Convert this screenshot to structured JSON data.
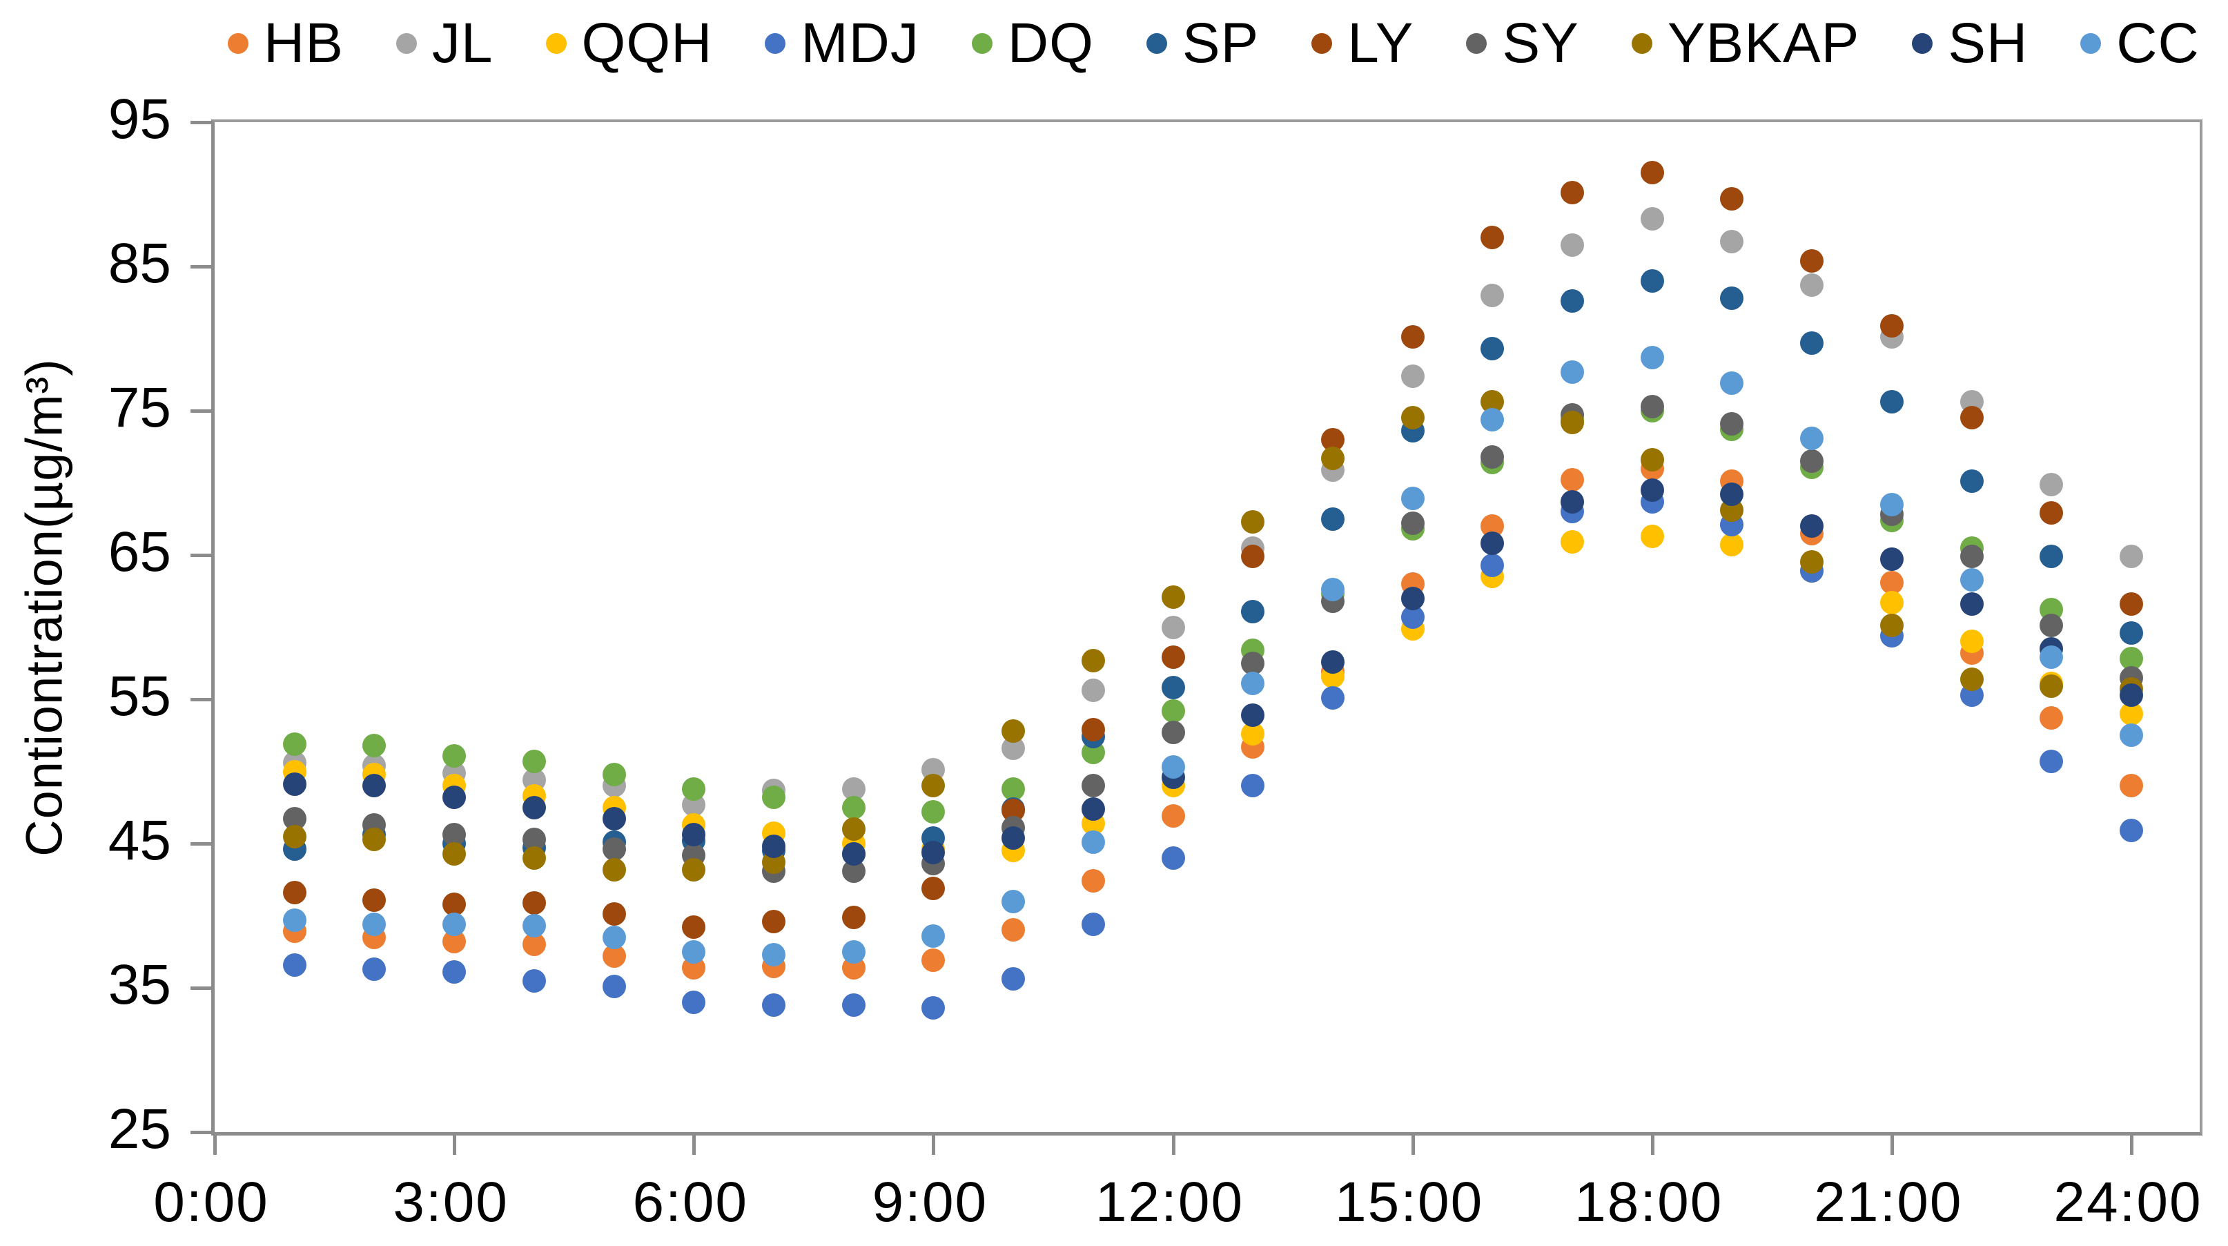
{
  "chart_data": {
    "type": "scatter",
    "title": "",
    "xlabel": "",
    "ylabel": "Contiontration(µg/m³)",
    "ylim": [
      25,
      95
    ],
    "y_ticks": [
      25,
      35,
      45,
      55,
      65,
      75,
      85,
      95
    ],
    "x_ticks_hours": [
      0,
      3,
      6,
      9,
      12,
      15,
      18,
      21,
      24
    ],
    "x_tick_labels": [
      "0:00",
      "3:00",
      "6:00",
      "9:00",
      "12:00",
      "15:00",
      "18:00",
      "21:00",
      "24:00"
    ],
    "x_hours": [
      1,
      2,
      3,
      4,
      5,
      6,
      7,
      8,
      9,
      10,
      11,
      12,
      13,
      14,
      15,
      16,
      17,
      18,
      19,
      20,
      21,
      22,
      23,
      24
    ],
    "xlim_hours": [
      0,
      24.86
    ],
    "grid": false,
    "legend_position": "top",
    "marker": "circle",
    "series": [
      {
        "name": "HB",
        "color": "#ED7D31",
        "values": [
          38.9,
          38.5,
          38.2,
          38.0,
          37.2,
          36.4,
          36.5,
          36.4,
          36.9,
          39.0,
          42.4,
          46.9,
          51.7,
          56.9,
          63.0,
          67.0,
          70.2,
          71.0,
          70.1,
          66.5,
          63.1,
          58.2,
          53.7,
          49.0
        ]
      },
      {
        "name": "JL",
        "color": "#A5A5A5",
        "values": [
          50.6,
          50.4,
          49.9,
          49.4,
          49.0,
          47.7,
          48.7,
          48.8,
          50.1,
          51.6,
          55.6,
          60.0,
          65.5,
          70.9,
          77.4,
          83.0,
          86.5,
          88.3,
          86.7,
          83.7,
          80.1,
          75.6,
          69.9,
          64.9
        ]
      },
      {
        "name": "QQH",
        "color": "#FFC000",
        "values": [
          50.0,
          49.8,
          49.0,
          48.3,
          47.5,
          46.3,
          45.7,
          45.0,
          44.6,
          44.5,
          46.4,
          49.0,
          52.6,
          56.6,
          59.9,
          63.5,
          65.9,
          66.3,
          65.7,
          63.9,
          61.7,
          59.0,
          56.1,
          54.0
        ]
      },
      {
        "name": "MDJ",
        "color": "#4472C4",
        "values": [
          36.6,
          36.3,
          36.1,
          35.5,
          35.1,
          34.0,
          33.8,
          33.8,
          33.6,
          35.6,
          39.4,
          44.0,
          49.0,
          55.1,
          60.7,
          64.3,
          68.0,
          68.7,
          67.1,
          63.9,
          59.4,
          55.3,
          50.7,
          45.9
        ]
      },
      {
        "name": "DQ",
        "color": "#70AD47",
        "values": [
          51.9,
          51.8,
          51.1,
          50.7,
          49.8,
          48.8,
          48.2,
          47.5,
          47.2,
          48.8,
          51.3,
          54.2,
          58.4,
          62.3,
          66.8,
          71.4,
          74.4,
          75.0,
          73.7,
          71.1,
          67.4,
          65.5,
          61.2,
          57.8
        ]
      },
      {
        "name": "SP",
        "color": "#255E91",
        "values": [
          44.6,
          45.6,
          45.0,
          44.7,
          45.1,
          45.2,
          44.5,
          44.3,
          45.4,
          47.4,
          52.4,
          55.8,
          61.1,
          67.5,
          73.6,
          79.3,
          82.6,
          84.0,
          82.8,
          79.7,
          75.6,
          70.1,
          64.9,
          59.6
        ]
      },
      {
        "name": "LY",
        "color": "#9E480E",
        "values": [
          41.6,
          41.1,
          40.8,
          40.9,
          40.1,
          39.2,
          39.6,
          39.9,
          41.9,
          47.3,
          52.9,
          57.9,
          64.9,
          73.0,
          80.1,
          87.0,
          90.1,
          91.5,
          89.7,
          85.4,
          80.9,
          74.5,
          67.9,
          61.6
        ]
      },
      {
        "name": "SY",
        "color": "#636363",
        "values": [
          46.7,
          46.3,
          45.6,
          45.3,
          44.6,
          44.2,
          43.1,
          43.1,
          43.6,
          46.1,
          49.0,
          52.7,
          57.5,
          61.8,
          67.2,
          71.8,
          74.7,
          75.3,
          74.1,
          71.5,
          67.8,
          64.9,
          60.1,
          56.5
        ]
      },
      {
        "name": "YBKAP",
        "color": "#997300",
        "values": [
          45.5,
          45.3,
          44.3,
          44.0,
          43.2,
          43.2,
          43.7,
          46.0,
          49.0,
          52.8,
          57.7,
          62.1,
          67.3,
          71.7,
          74.5,
          75.6,
          74.2,
          71.6,
          68.1,
          64.5,
          60.1,
          56.4,
          55.9,
          55.7
        ]
      },
      {
        "name": "SH",
        "color": "#264478",
        "values": [
          49.1,
          49.0,
          48.2,
          47.5,
          46.7,
          45.6,
          44.8,
          44.3,
          44.4,
          45.4,
          47.4,
          49.6,
          53.9,
          57.6,
          62.0,
          65.8,
          68.7,
          69.5,
          69.2,
          67.0,
          64.7,
          61.6,
          58.5,
          55.3
        ]
      },
      {
        "name": "CC",
        "color": "#5B9BD5",
        "values": [
          39.7,
          39.4,
          39.4,
          39.3,
          38.5,
          37.5,
          37.3,
          37.5,
          38.6,
          41.0,
          45.1,
          50.3,
          56.1,
          62.6,
          68.9,
          74.4,
          77.7,
          78.7,
          76.9,
          73.1,
          68.5,
          63.3,
          57.9,
          52.5
        ]
      }
    ]
  },
  "layout_text": {
    "y_axis_title": "Contiontration(µg/m³)"
  },
  "colors": {
    "axis_line": "#8c8c8c",
    "text": "#000000",
    "background": "#ffffff"
  }
}
